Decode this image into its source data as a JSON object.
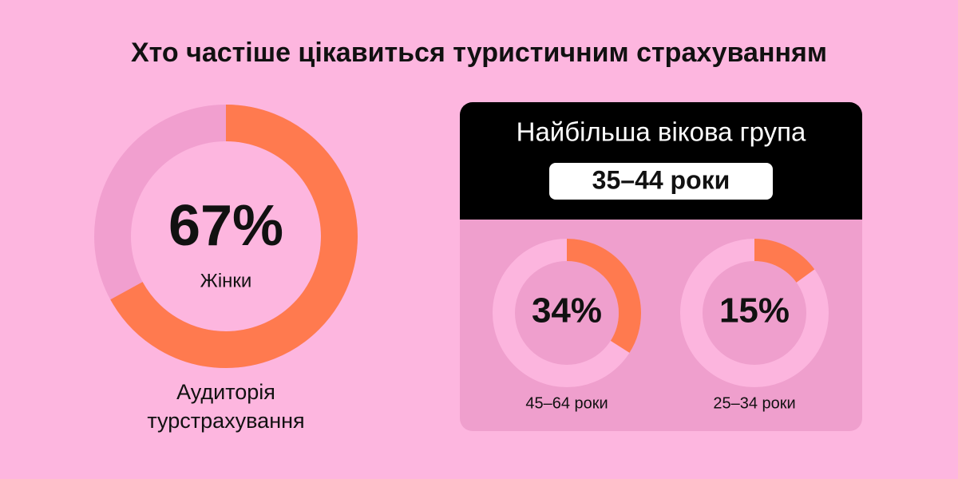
{
  "title": "Хто частіше цікавиться туристичним страхуванням",
  "highlight": {
    "title": "Найбільша вікова група",
    "value": "35–44 роки"
  },
  "chart_data": [
    {
      "type": "donut",
      "values": [
        67
      ],
      "value_labels": [
        "67%"
      ],
      "label": "Жінки",
      "caption": [
        "Аудиторія",
        "турстрахування"
      ],
      "color": "#ff7a4f",
      "track_color": "#f19fcf"
    },
    {
      "type": "donut",
      "values": [
        34
      ],
      "value_labels": [
        "34%"
      ],
      "caption": [
        "45–64 роки"
      ],
      "color": "#ff7a4f",
      "track_color": "#fcb5de"
    },
    {
      "type": "donut",
      "values": [
        15
      ],
      "value_labels": [
        "15%"
      ],
      "caption": [
        "25–34 роки"
      ],
      "color": "#ff7a4f",
      "track_color": "#fcb5de"
    }
  ]
}
